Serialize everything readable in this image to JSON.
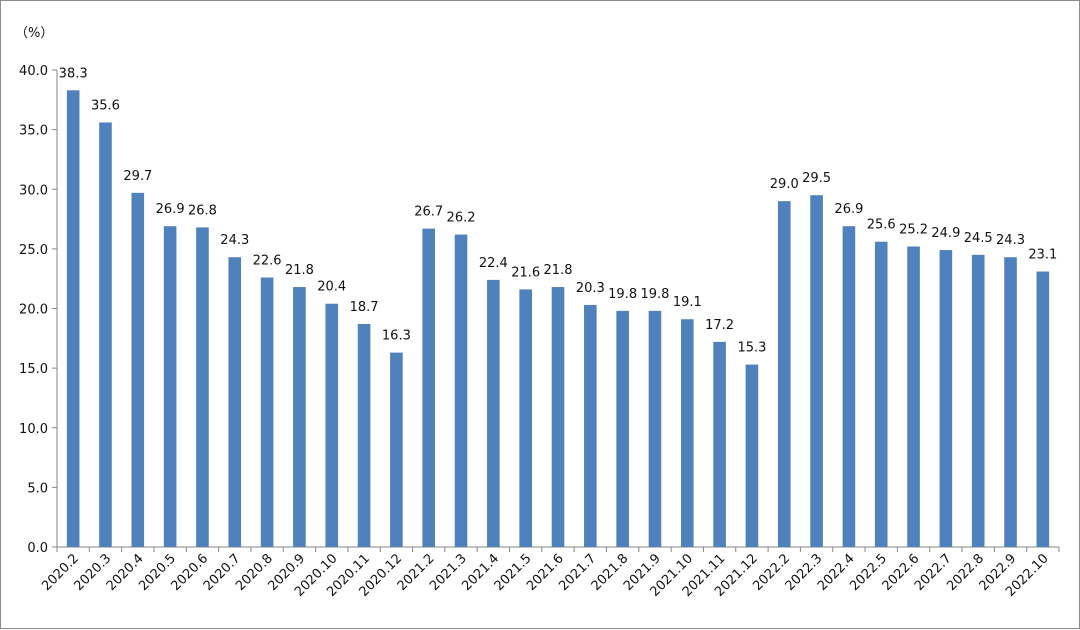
{
  "chart_data": {
    "type": "bar",
    "unit_label": "（%）",
    "categories": [
      "2020.2",
      "2020.3",
      "2020.4",
      "2020.5",
      "2020.6",
      "2020.7",
      "2020.8",
      "2020.9",
      "2020.10",
      "2020.11",
      "2020.12",
      "2021.2",
      "2021.3",
      "2021.4",
      "2021.5",
      "2021.6",
      "2021.7",
      "2021.8",
      "2021.9",
      "2021.10",
      "2021.11",
      "2021.12",
      "2022.2",
      "2022.3",
      "2022.4",
      "2022.5",
      "2022.6",
      "2022.7",
      "2022.8",
      "2022.9",
      "2022.10"
    ],
    "values": [
      38.3,
      35.6,
      29.7,
      26.9,
      26.8,
      24.3,
      22.6,
      21.8,
      20.4,
      18.7,
      16.3,
      26.7,
      26.2,
      22.4,
      21.6,
      21.8,
      20.3,
      19.8,
      19.8,
      19.1,
      17.2,
      15.3,
      29.0,
      29.5,
      26.9,
      25.6,
      25.2,
      24.9,
      24.5,
      24.3,
      23.1
    ],
    "value_labels": [
      "38.3",
      "35.6",
      "29.7",
      "26.9",
      "26.8",
      "24.3",
      "22.6",
      "21.8",
      "20.4",
      "18.7",
      "16.3",
      "26.7",
      "26.2",
      "22.4",
      "21.6",
      "21.8",
      "20.3",
      "19.8",
      "19.8",
      "19.1",
      "17.2",
      "15.3",
      "29.0",
      "29.5",
      "26.9",
      "25.6",
      "25.2",
      "24.9",
      "24.5",
      "24.3",
      "23.1"
    ],
    "yticks": [
      "0.0",
      "5.0",
      "10.0",
      "15.0",
      "20.0",
      "25.0",
      "30.0",
      "35.0",
      "40.0"
    ],
    "ylim": [
      0,
      40
    ],
    "grid": false,
    "legend": "none",
    "bar_color": "#4f81bd"
  }
}
